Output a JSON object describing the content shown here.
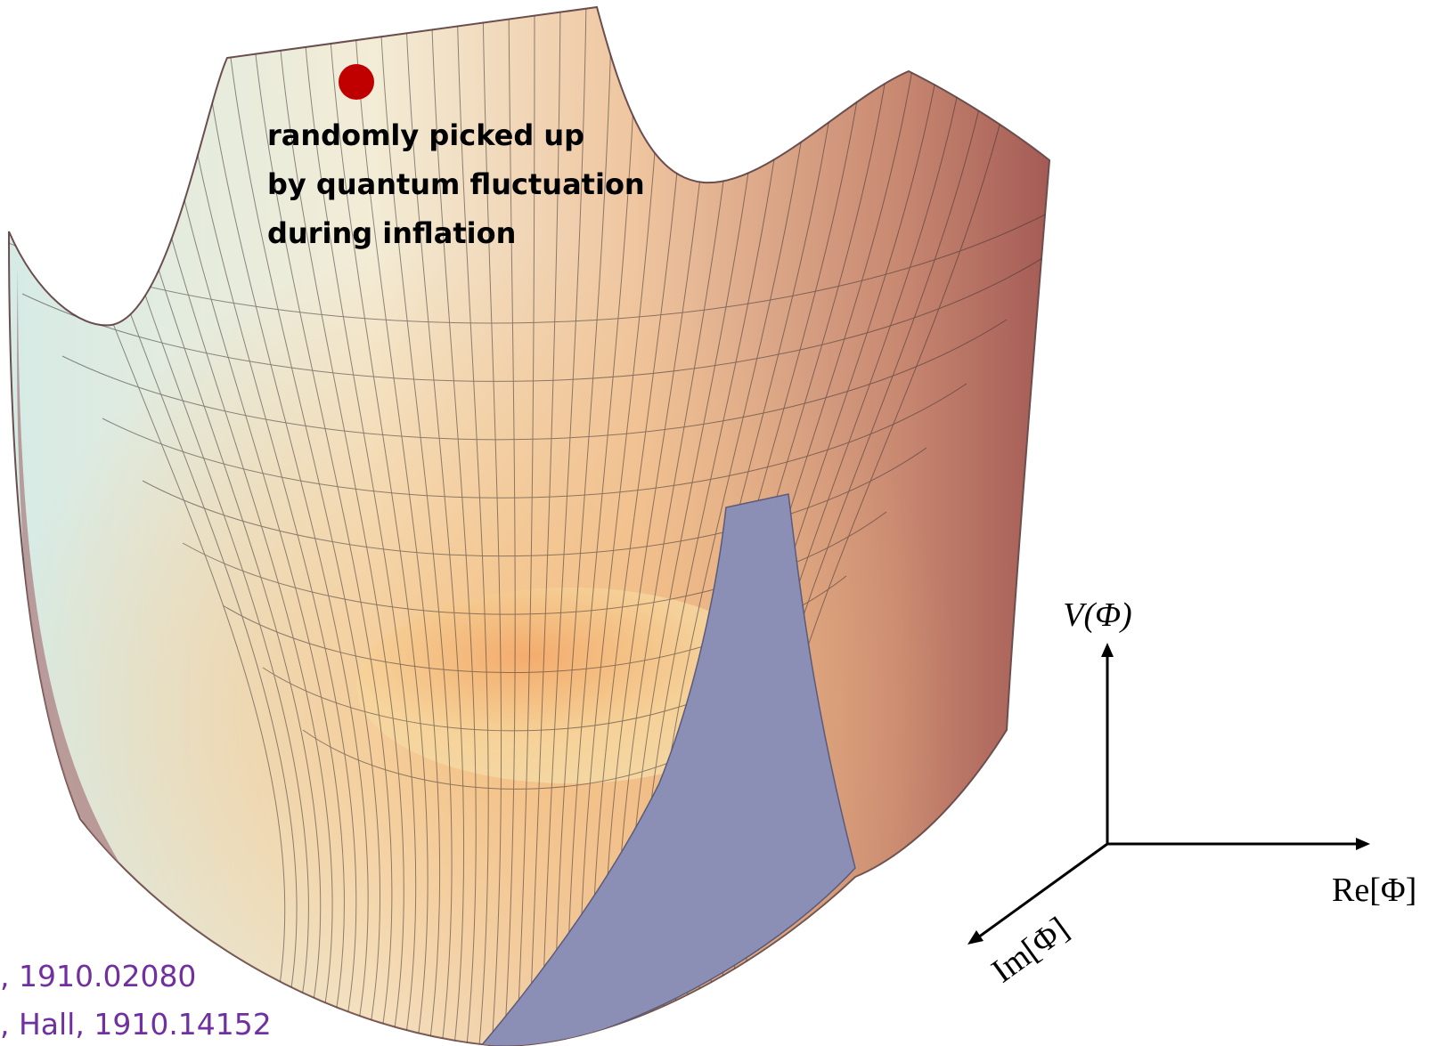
{
  "annotation": {
    "lines": [
      "randomly picked up",
      "by quantum fluctuation",
      "during inflation"
    ]
  },
  "axes": {
    "vertical": "V(Φ)",
    "real": "Re[Φ]",
    "imaginary": "Im[Φ]"
  },
  "citations": [
    ", 1910.02080",
    ", Hall, 1910.14152"
  ]
}
